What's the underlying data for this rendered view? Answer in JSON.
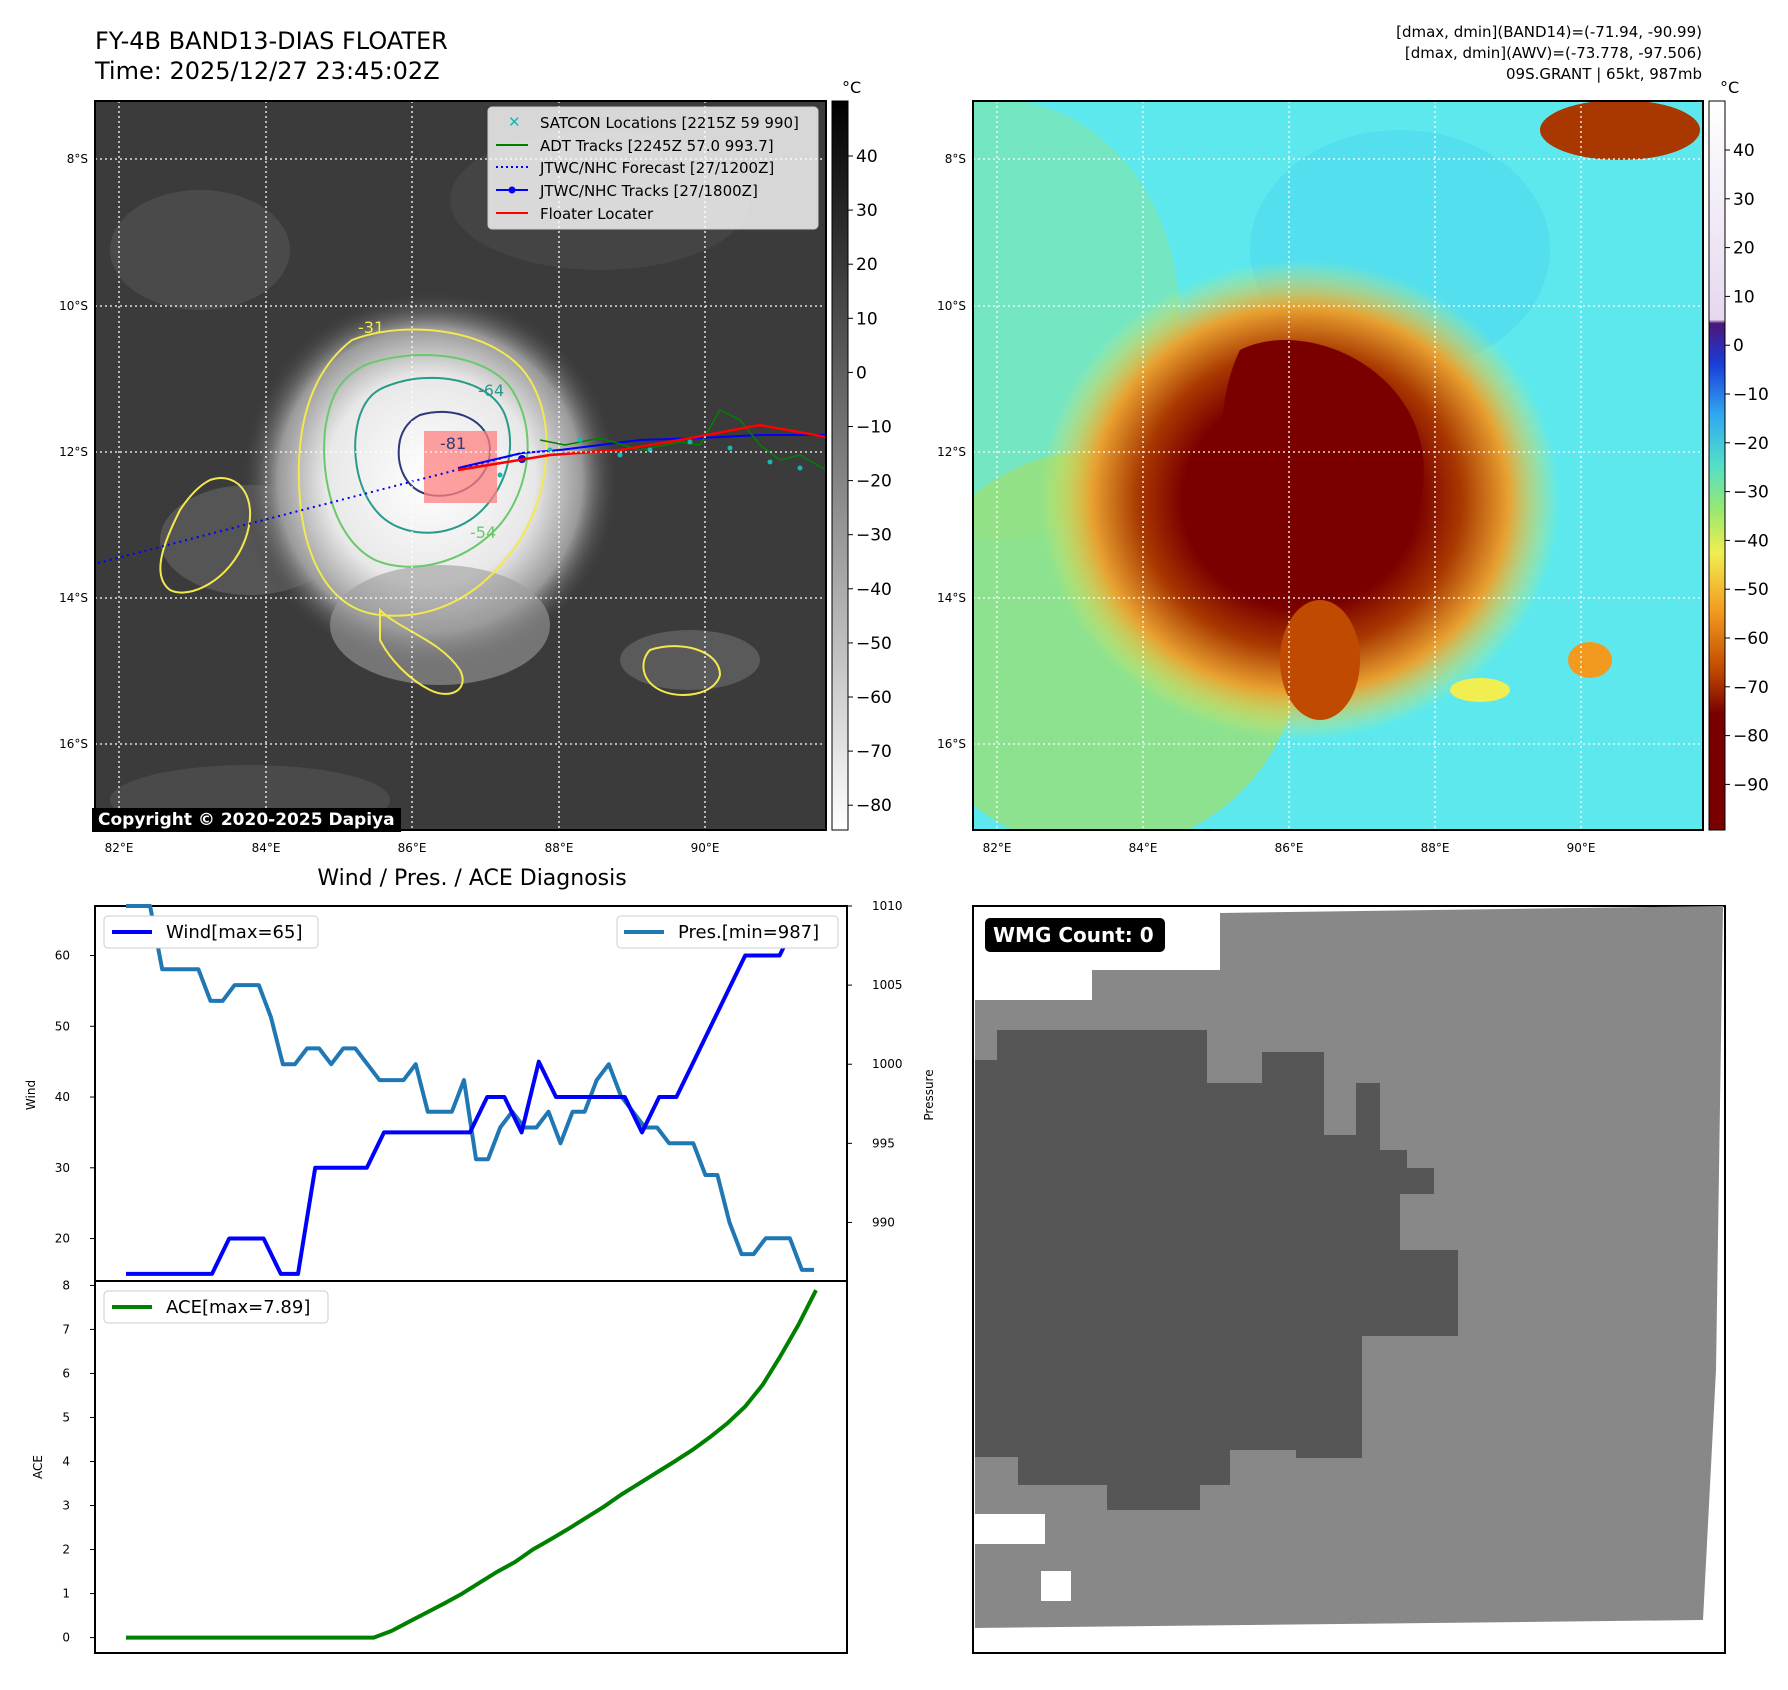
{
  "header": {
    "title_line1": "FY-4B BAND13-DIAS FLOATER",
    "title_line2": "Time: 2025/12/27 23:45:02Z",
    "info_line1": "[dmax, dmin](BAND14)=(-71.94, -90.99)",
    "info_line2": "[dmax, dmin](AWV)=(-73.778, -97.506)",
    "info_line3": "09S.GRANT | 65kt, 987mb"
  },
  "map": {
    "lon_labels": [
      "82°E",
      "84°E",
      "86°E",
      "88°E",
      "90°E"
    ],
    "lat_labels": [
      "8°S",
      "10°S",
      "12°S",
      "14°S",
      "16°S"
    ],
    "colorbar_unit": "°C",
    "ir_colorbar_ticks": [
      "40",
      "30",
      "20",
      "10",
      "0",
      "−10",
      "−20",
      "−30",
      "−40",
      "−50",
      "−60",
      "−70",
      "−80"
    ],
    "awv_colorbar_ticks": [
      "40",
      "30",
      "20",
      "10",
      "0",
      "−10",
      "−20",
      "−30",
      "−40",
      "−50",
      "−60",
      "−70",
      "−80",
      "−90"
    ],
    "contour_labels": [
      "-31",
      "-54",
      "-64",
      "-81"
    ],
    "copyright": "Copyright © 2020-2025 Dapiya",
    "legend": [
      {
        "label": "SATCON Locations [2215Z 59 990]",
        "color": "#14b8b0"
      },
      {
        "label": "ADT Tracks [2245Z 57.0 993.7]",
        "color": "#008000"
      },
      {
        "label": "JTWC/NHC Forecast [27/1200Z]",
        "color": "#0000ff"
      },
      {
        "label": "JTWC/NHC Tracks [27/1800Z]",
        "color": "#0000ff"
      },
      {
        "label": "Floater Locater",
        "color": "#ff0000"
      }
    ]
  },
  "diagnosis_title": "Wind / Pres. / ACE Diagnosis",
  "wmg_label": "WMG Count: 0",
  "chart_data": [
    {
      "type": "line",
      "title": "Wind / Pres. / ACE Diagnosis",
      "ylabel": "Wind",
      "y2label": "Pressure",
      "ylim": [
        14,
        67
      ],
      "y2lim": [
        986.3,
        1010
      ],
      "yticks": [
        20,
        30,
        40,
        50,
        60
      ],
      "y2ticks": [
        990,
        995,
        1000,
        1005,
        1010
      ],
      "series": [
        {
          "name": "Wind[max=65]",
          "color": "#0000ff",
          "axis": "left",
          "values": [
            15,
            15,
            15,
            15,
            15,
            15,
            20,
            20,
            20,
            15,
            15,
            30,
            30,
            30,
            30,
            35,
            35,
            35,
            35,
            35,
            35,
            40,
            40,
            35,
            45,
            40,
            40,
            40,
            40,
            40,
            35,
            40,
            40,
            45,
            50,
            55,
            60,
            60,
            60,
            65,
            65
          ]
        },
        {
          "name": "Pres.[min=987]",
          "color": "#1f77b4",
          "axis": "right",
          "values": [
            1010,
            1010,
            1010,
            1006,
            1006,
            1006,
            1006,
            1004,
            1004,
            1005,
            1005,
            1005,
            1003,
            1000,
            1000,
            1001,
            1001,
            1000,
            1001,
            1001,
            1000,
            999,
            999,
            999,
            1000,
            997,
            997,
            997,
            999,
            994,
            994,
            996,
            997,
            996,
            996,
            997,
            995,
            997,
            997,
            999,
            1000,
            998,
            997,
            996,
            996,
            995,
            995,
            995,
            993,
            993,
            990,
            988,
            988,
            989,
            989,
            989,
            987,
            987
          ]
        }
      ]
    },
    {
      "type": "line",
      "ylabel": "ACE",
      "ylim": [
        -0.35,
        8.1
      ],
      "yticks": [
        0,
        1,
        2,
        3,
        4,
        5,
        6,
        7,
        8
      ],
      "series": [
        {
          "name": "ACE[max=7.89]",
          "color": "#008000",
          "values": [
            0,
            0,
            0,
            0,
            0,
            0,
            0,
            0,
            0,
            0,
            0,
            0,
            0,
            0,
            0,
            0.15,
            0.36,
            0.57,
            0.78,
            1.0,
            1.25,
            1.5,
            1.72,
            2.0,
            2.23,
            2.47,
            2.72,
            2.97,
            3.25,
            3.5,
            3.75,
            4.0,
            4.26,
            4.55,
            4.87,
            5.25,
            5.75,
            6.4,
            7.1,
            7.89
          ]
        }
      ]
    }
  ]
}
